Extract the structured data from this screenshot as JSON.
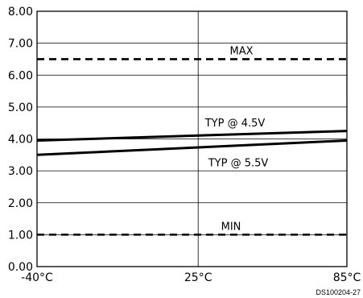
{
  "chart_data": {
    "type": "line",
    "title": "",
    "xlabel": "",
    "ylabel": "",
    "x": [
      -40,
      25,
      85
    ],
    "x_tick_labels": [
      "-40°C",
      "25°C",
      "85°C"
    ],
    "xlim": [
      -40,
      85
    ],
    "ylim": [
      0,
      8
    ],
    "y_ticks": [
      0,
      1,
      2,
      3,
      4,
      5,
      6,
      7,
      8
    ],
    "y_tick_labels": [
      "0.00",
      "1.00",
      "2.00",
      "3.00",
      "4.00",
      "5.00",
      "6.00",
      "7.00",
      "8.00"
    ],
    "grid": true,
    "series": [
      {
        "name": "MAX",
        "style": "dashed",
        "x": [
          -40,
          85
        ],
        "values": [
          6.5,
          6.5
        ]
      },
      {
        "name": "TYP @ 4.5V",
        "style": "solid",
        "x": [
          -40,
          85
        ],
        "values": [
          3.95,
          4.25
        ]
      },
      {
        "name": "TYP @ 5.5V",
        "style": "solid",
        "x": [
          -40,
          85
        ],
        "values": [
          3.5,
          3.95
        ]
      },
      {
        "name": "MIN",
        "style": "dashed",
        "x": [
          -40,
          85
        ],
        "values": [
          1.0,
          1.0
        ]
      }
    ],
    "figure_id": "DS100204-27"
  }
}
